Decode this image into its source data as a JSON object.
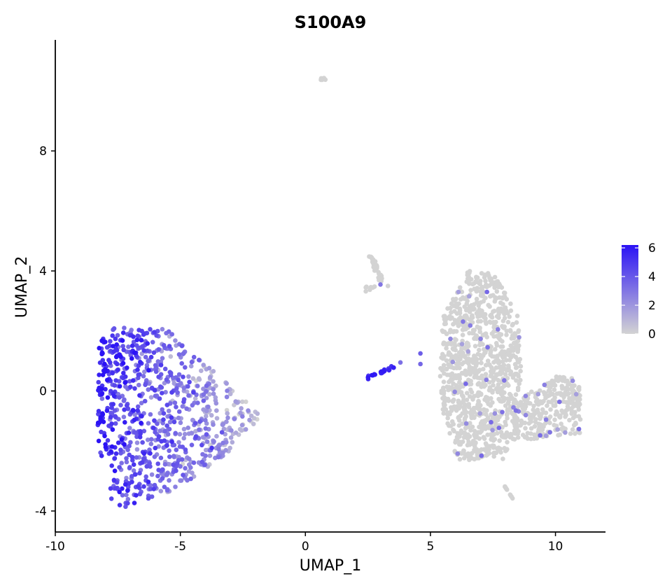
{
  "chart_data": {
    "type": "scatter",
    "title": "S100A9",
    "xlabel": "UMAP_1",
    "ylabel": "UMAP_2",
    "xlim": [
      -10,
      12
    ],
    "ylim": [
      -4.7,
      11.7
    ],
    "x_ticks": [
      -10,
      -5,
      0,
      5,
      10
    ],
    "y_ticks": [
      -4,
      0,
      4,
      8
    ],
    "x_tick_labels": [
      "-10",
      "-5",
      "0",
      "5",
      "10"
    ],
    "y_tick_labels": [
      "-4",
      "0",
      "4",
      "8"
    ],
    "grid": false,
    "legend": {
      "placement": "right",
      "type": "colorbar",
      "min": 0,
      "max": 6.2,
      "ticks": [
        0,
        2,
        4,
        6
      ],
      "tick_labels": [
        "0",
        "2",
        "4",
        "6"
      ],
      "low_color": "#d3d3d3",
      "high_color": "#2b12f5"
    },
    "clusters": [
      {
        "center": [
          -5.2,
          -0.5
        ],
        "extent": [
          3.0,
          3.2
        ],
        "count": 1200,
        "expression": "high, decreasing toward right edge",
        "max_value": 6
      },
      {
        "center": [
          7.0,
          0.5
        ],
        "extent": [
          2.8,
          3.3
        ],
        "count": 900,
        "expression": "near zero, sparse points 1-3",
        "max_value": 3
      },
      {
        "center": [
          9.8,
          -0.9
        ],
        "extent": [
          1.0,
          1.0
        ],
        "count": 150,
        "expression": "near zero",
        "max_value": 3
      },
      {
        "center": [
          2.85,
          3.95
        ],
        "extent": [
          0.35,
          0.55
        ],
        "count": 45,
        "expression": "zero, one point ~3",
        "max_value": 3
      },
      {
        "center": [
          3.3,
          0.7
        ],
        "extent": [
          1.3,
          0.3
        ],
        "count": 25,
        "expression": "high ~5-6",
        "max_value": 6
      },
      {
        "center": [
          0.7,
          10.4
        ],
        "extent": [
          0.1,
          0.05
        ],
        "count": 6,
        "expression": "zero",
        "max_value": 0
      },
      {
        "center": [
          8.1,
          -3.4
        ],
        "extent": [
          0.2,
          0.25
        ],
        "count": 12,
        "expression": "zero",
        "max_value": 0
      }
    ]
  }
}
